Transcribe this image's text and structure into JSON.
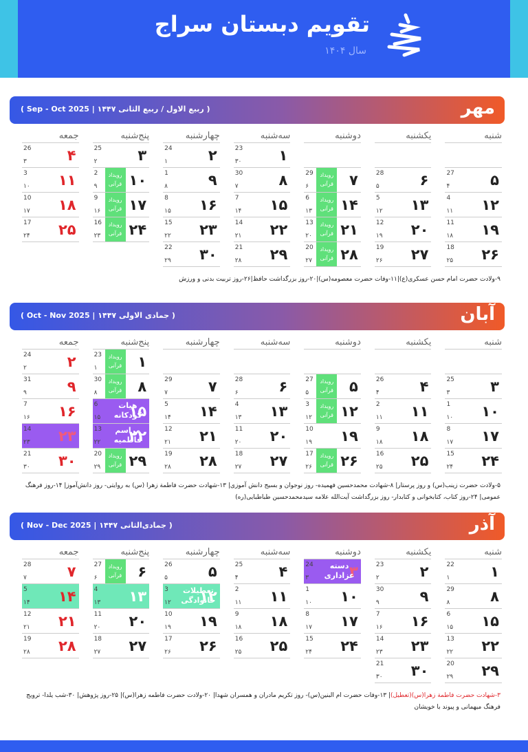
{
  "header": {
    "title": "تقویم دبستان سراج",
    "subtitle": "سال ۱۴۰۴"
  },
  "weekdays": [
    "شنبه",
    "یکشنبه",
    "دوشنبه",
    "سه‌شنبه",
    "چهارشنبه",
    "پنج‌شنبه",
    "جمعه"
  ],
  "colors": {
    "event": "#5fe07a",
    "holiday": "#e0262b"
  },
  "months": [
    {
      "name": "مهر",
      "range": "( ربیع الاول / ربیع الثانی ۱۴۴۷ | Sep - Oct 2025 )",
      "weeks": [
        [
          null,
          null,
          null,
          {
            "day": "۱",
            "greg": "23",
            "hijri": "۳۰"
          },
          {
            "day": "۲",
            "greg": "24",
            "hijri": "۱"
          },
          {
            "day": "۳",
            "greg": "25",
            "hijri": "۲"
          },
          {
            "day": "۴",
            "greg": "26",
            "hijri": "۳",
            "holiday": true
          }
        ],
        [
          {
            "day": "۵",
            "greg": "27",
            "hijri": "۴"
          },
          {
            "day": "۶",
            "greg": "28",
            "hijri": "۵"
          },
          {
            "day": "۷",
            "greg": "29",
            "hijri": "۶",
            "event": "رویداد قرآنی"
          },
          {
            "day": "۸",
            "greg": "30",
            "hijri": "۷"
          },
          {
            "day": "۹",
            "greg": "1",
            "hijri": "۸"
          },
          {
            "day": "۱۰",
            "greg": "2",
            "hijri": "۹",
            "event": "رویداد قرآنی"
          },
          {
            "day": "۱۱",
            "greg": "3",
            "hijri": "۱۰",
            "holiday": true
          }
        ],
        [
          {
            "day": "۱۲",
            "greg": "4",
            "hijri": "۱۱"
          },
          {
            "day": "۱۳",
            "greg": "5",
            "hijri": "۱۲"
          },
          {
            "day": "۱۴",
            "greg": "6",
            "hijri": "۱۳",
            "event": "رویداد قرآنی"
          },
          {
            "day": "۱۵",
            "greg": "7",
            "hijri": "۱۴"
          },
          {
            "day": "۱۶",
            "greg": "8",
            "hijri": "۱۵"
          },
          {
            "day": "۱۷",
            "greg": "9",
            "hijri": "۱۶",
            "event": "رویداد قرآنی"
          },
          {
            "day": "۱۸",
            "greg": "10",
            "hijri": "۱۷",
            "holiday": true
          }
        ],
        [
          {
            "day": "۱۹",
            "greg": "11",
            "hijri": "۱۸"
          },
          {
            "day": "۲۰",
            "greg": "12",
            "hijri": "۱۹"
          },
          {
            "day": "۲۱",
            "greg": "13",
            "hijri": "۲۰",
            "event": "رویداد قرآنی"
          },
          {
            "day": "۲۲",
            "greg": "14",
            "hijri": "۲۱"
          },
          {
            "day": "۲۳",
            "greg": "15",
            "hijri": "۲۲"
          },
          {
            "day": "۲۴",
            "greg": "16",
            "hijri": "۲۳",
            "event": "رویداد قرآنی"
          },
          {
            "day": "۲۵",
            "greg": "17",
            "hijri": "۲۴",
            "holiday": true
          }
        ],
        [
          {
            "day": "۲۶",
            "greg": "18",
            "hijri": "۲۵"
          },
          {
            "day": "۲۷",
            "greg": "19",
            "hijri": "۲۶"
          },
          {
            "day": "۲۸",
            "greg": "20",
            "hijri": "۲۷",
            "event": "رویداد قرآنی"
          },
          {
            "day": "۲۹",
            "greg": "21",
            "hijri": "۲۸"
          },
          {
            "day": "۳۰",
            "greg": "22",
            "hijri": "۲۹"
          },
          null,
          null
        ]
      ],
      "notes": [
        {
          "text": "۹-ولادت حضرت امام حسن عسکری(ع)|۱۱-وفات حضرت معصومه(س)|۲۰-روز بزرگداشت حافظ|۲۶-روز تربیت بدنی و ورزش"
        }
      ]
    },
    {
      "name": "آبان",
      "range": "( جمادی الاولی ۱۴۴۷ | Oct - Nov 2025 )",
      "weeks": [
        [
          null,
          null,
          null,
          null,
          null,
          {
            "day": "۱",
            "greg": "23",
            "hijri": "۱",
            "event": "رویداد قرآنی"
          },
          {
            "day": "۲",
            "greg": "24",
            "hijri": "۲",
            "holiday": true
          }
        ],
        [
          {
            "day": "۳",
            "greg": "25",
            "hijri": "۳"
          },
          {
            "day": "۴",
            "greg": "26",
            "hijri": "۴"
          },
          {
            "day": "۵",
            "greg": "27",
            "hijri": "۵",
            "event": "رویداد قرآنی"
          },
          {
            "day": "۶",
            "greg": "28",
            "hijri": "۶"
          },
          {
            "day": "۷",
            "greg": "29",
            "hijri": "۷"
          },
          {
            "day": "۸",
            "greg": "30",
            "hijri": "۸",
            "event": "رویداد قرآنی"
          },
          {
            "day": "۹",
            "greg": "31",
            "hijri": "۹",
            "holiday": true
          }
        ],
        [
          {
            "day": "۱۰",
            "greg": "1",
            "hijri": "۱۰"
          },
          {
            "day": "۱۱",
            "greg": "2",
            "hijri": "۱۱"
          },
          {
            "day": "۱۲",
            "greg": "3",
            "hijri": "۱۲",
            "event": "رویداد قرآنی"
          },
          {
            "day": "۱۳",
            "greg": "4",
            "hijri": "۱۳"
          },
          {
            "day": "۱۴",
            "greg": "5",
            "hijri": "۱۴"
          },
          {
            "day": "۱۵",
            "greg": "6",
            "hijri": "۱۵",
            "label": "هیات کودکانه",
            "highlight": "#9a5bf0"
          },
          {
            "day": "۱۶",
            "greg": "7",
            "hijri": "۱۶",
            "holiday": true
          }
        ],
        [
          {
            "day": "۱۷",
            "greg": "8",
            "hijri": "۱۷"
          },
          {
            "day": "۱۸",
            "greg": "9",
            "hijri": "۱۸"
          },
          {
            "day": "۱۹",
            "greg": "10",
            "hijri": "۱۹"
          },
          {
            "day": "۲۰",
            "greg": "11",
            "hijri": "۲۰"
          },
          {
            "day": "۲۱",
            "greg": "12",
            "hijri": "۲۱"
          },
          {
            "day": "۲۲",
            "greg": "13",
            "hijri": "۲۲",
            "label": "مراسم فاطمیه",
            "highlight": "#9a5bf0"
          },
          {
            "day": "۲۳",
            "greg": "14",
            "hijri": "۲۳",
            "holiday": true,
            "highlight": "#9a5bf0"
          }
        ],
        [
          {
            "day": "۲۴",
            "greg": "15",
            "hijri": "۲۴"
          },
          {
            "day": "۲۵",
            "greg": "16",
            "hijri": "۲۵"
          },
          {
            "day": "۲۶",
            "greg": "17",
            "hijri": "۲۶",
            "event": "رویداد قرآنی"
          },
          {
            "day": "۲۷",
            "greg": "18",
            "hijri": "۲۷"
          },
          {
            "day": "۲۸",
            "greg": "19",
            "hijri": "۲۸"
          },
          {
            "day": "۲۹",
            "greg": "20",
            "hijri": "۲۹",
            "event": "رویداد قرآنی"
          },
          {
            "day": "۳۰",
            "greg": "21",
            "hijri": "۳۰",
            "holiday": true
          }
        ]
      ],
      "notes": [
        {
          "text": "۵-ولادت حضرت زینب(س) و روز پرستار| ۸-شهادت محمدحسین فهمیده- روز نوجوان و بسیج دانش آموزی| ۱۳-شهادت حضرت فاطمة زهرا (س) به روایتی- روز دانش‌آموز| ۱۴-روز فرهنگ عمومی| ۲۴-روز کتاب، کتابخوانی و کتابدار- روز بزرگداشت آیت‌الله علامه سیدمحمدحسین طباطبایی(ره)"
        }
      ]
    },
    {
      "name": "آذر",
      "range": "( جمادی‌الثانی ۱۴۴۷ | Nov - Dec 2025 )",
      "weeks": [
        [
          {
            "day": "۱",
            "greg": "22",
            "hijri": "۱"
          },
          {
            "day": "۲",
            "greg": "23",
            "hijri": "۲"
          },
          {
            "day": "۳",
            "greg": "24",
            "hijri": "۳",
            "label": "دسته عزاداری",
            "highlight": "#9a5bf0",
            "holiday": true
          },
          {
            "day": "۴",
            "greg": "25",
            "hijri": "۴"
          },
          {
            "day": "۵",
            "greg": "26",
            "hijri": "۵"
          },
          {
            "day": "۶",
            "greg": "27",
            "hijri": "۶",
            "event": "رویداد قرآنی"
          },
          {
            "day": "۷",
            "greg": "28",
            "hijri": "۷",
            "holiday": true
          }
        ],
        [
          {
            "day": "۸",
            "greg": "29",
            "hijri": "۸"
          },
          {
            "day": "۹",
            "greg": "30",
            "hijri": "۹"
          },
          {
            "day": "۱۰",
            "greg": "1",
            "hijri": "۱۰"
          },
          {
            "day": "۱۱",
            "greg": "2",
            "hijri": "۱۱"
          },
          {
            "day": "۱۲",
            "greg": "3",
            "hijri": "۱۲",
            "label": "تعطیلات خانوادگی",
            "highlight": "#6fe8b8"
          },
          {
            "day": "۱۳",
            "greg": "4",
            "hijri": "۱۳",
            "highlight": "#6fe8b8"
          },
          {
            "day": "۱۴",
            "greg": "5",
            "hijri": "۱۴",
            "holiday": true,
            "highlight": "#6fe8b8"
          }
        ],
        [
          {
            "day": "۱۵",
            "greg": "6",
            "hijri": "۱۵"
          },
          {
            "day": "۱۶",
            "greg": "7",
            "hijri": "۱۶"
          },
          {
            "day": "۱۷",
            "greg": "8",
            "hijri": "۱۷"
          },
          {
            "day": "۱۸",
            "greg": "9",
            "hijri": "۱۸"
          },
          {
            "day": "۱۹",
            "greg": "10",
            "hijri": "۱۹"
          },
          {
            "day": "۲۰",
            "greg": "11",
            "hijri": "۲۰"
          },
          {
            "day": "۲۱",
            "greg": "12",
            "hijri": "۲۱",
            "holiday": true
          }
        ],
        [
          {
            "day": "۲۲",
            "greg": "13",
            "hijri": "۲۲"
          },
          {
            "day": "۲۳",
            "greg": "14",
            "hijri": "۲۳"
          },
          {
            "day": "۲۴",
            "greg": "15",
            "hijri": "۲۴"
          },
          {
            "day": "۲۵",
            "greg": "16",
            "hijri": "۲۵"
          },
          {
            "day": "۲۶",
            "greg": "17",
            "hijri": "۲۶"
          },
          {
            "day": "۲۷",
            "greg": "18",
            "hijri": "۲۷"
          },
          {
            "day": "۲۸",
            "greg": "19",
            "hijri": "۲۸",
            "holiday": true
          }
        ],
        [
          {
            "day": "۲۹",
            "greg": "20",
            "hijri": "۲۹"
          },
          {
            "day": "۳۰",
            "greg": "21",
            "hijri": "۳۰"
          },
          null,
          null,
          null,
          null,
          null
        ]
      ],
      "notes": [
        {
          "text": "۳-شهادت حضرت فاطمة زهرا(س)(تعطیل)",
          "holiday": true
        },
        {
          "text": "| ۱۳-وفات حضرت ام البنین(س)- روز تکریم مادران و همسران شهدا| ۲۰-ولادت حضرت فاطمه زهرا(س)| ۲۵-روز پژوهش| ۳۰-شب یلدا- ترویج فرهنگ میهمانی و پیوند با خویشان"
        }
      ]
    }
  ]
}
